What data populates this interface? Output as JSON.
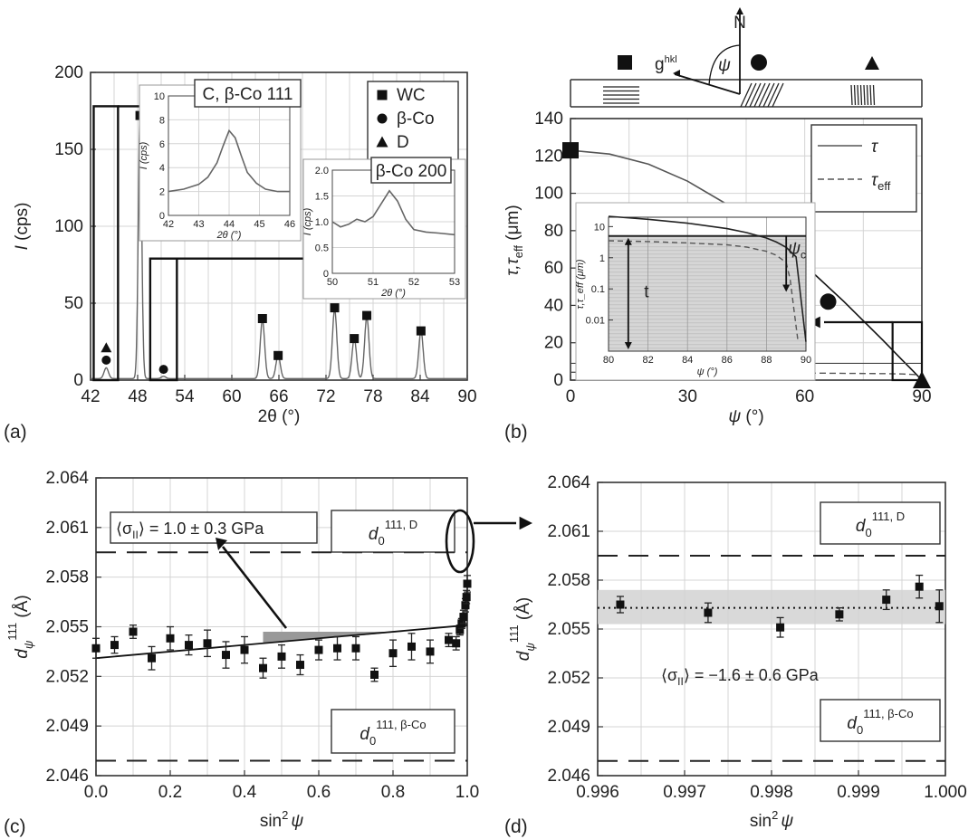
{
  "panel_labels": [
    "(a)",
    "(b)",
    "(c)",
    "(d)"
  ],
  "chart_data": [
    {
      "id": "a",
      "type": "line",
      "xlabel_sym": "2θ",
      "xlabel_unit": "(°)",
      "ylabel_sym": "I",
      "ylabel_unit": "(cps)",
      "xlim": [
        42,
        90
      ],
      "ylim": [
        0,
        200
      ],
      "xticks": [
        "42",
        "48",
        "54",
        "60",
        "66",
        "72",
        "78",
        "84",
        "90"
      ],
      "xtick_values": [
        42,
        48,
        54,
        60,
        66,
        72,
        78,
        84,
        90
      ],
      "yticks": [
        "0",
        "50",
        "100",
        "150",
        "200"
      ],
      "ytick_values": [
        0,
        50,
        100,
        150,
        200
      ],
      "grid": true,
      "legend_position": "top-right",
      "legend": [
        {
          "marker": "square",
          "label": "WC"
        },
        {
          "marker": "circle",
          "label": "β-Co"
        },
        {
          "marker": "triangle",
          "label": "D"
        }
      ],
      "peaks": [
        {
          "x": 44.0,
          "height": 7,
          "phase": "C, β-Co 111"
        },
        {
          "x": 48.3,
          "height": 170,
          "phase": "WC"
        },
        {
          "x": 51.3,
          "height": 1.5,
          "phase": "β-Co"
        },
        {
          "x": 63.9,
          "height": 38,
          "phase": "WC"
        },
        {
          "x": 65.9,
          "height": 15,
          "phase": "WC"
        },
        {
          "x": 73.1,
          "height": 45,
          "phase": "WC"
        },
        {
          "x": 75.6,
          "height": 26,
          "phase": "WC"
        },
        {
          "x": 77.2,
          "height": 40,
          "phase": "WC"
        },
        {
          "x": 84.1,
          "height": 31,
          "phase": "WC"
        }
      ],
      "markers": [
        {
          "x": 44.0,
          "y": 21,
          "marker": "triangle"
        },
        {
          "x": 44.0,
          "y": 13,
          "marker": "circle"
        },
        {
          "x": 48.3,
          "y": 172,
          "marker": "square"
        },
        {
          "x": 51.3,
          "y": 7,
          "marker": "circle"
        },
        {
          "x": 63.9,
          "y": 40,
          "marker": "square"
        },
        {
          "x": 65.9,
          "y": 16,
          "marker": "square"
        },
        {
          "x": 73.1,
          "y": 47,
          "marker": "square"
        },
        {
          "x": 75.6,
          "y": 27,
          "marker": "square"
        },
        {
          "x": 77.2,
          "y": 42,
          "marker": "square"
        },
        {
          "x": 84.1,
          "y": 32,
          "marker": "square"
        }
      ],
      "insets": [
        {
          "label": "C, β-Co 111",
          "xlabel": "2θ (°)",
          "ylabel": "I (cps)",
          "xlim": [
            42,
            46
          ],
          "ylim": [
            0,
            10
          ],
          "xticks": [
            "42",
            "43",
            "44",
            "45",
            "46"
          ],
          "xtick_values": [
            42,
            43,
            44,
            45,
            46
          ],
          "yticks": [
            "0",
            "2",
            "4",
            "6",
            "8",
            "10"
          ],
          "ytick_values": [
            0,
            2,
            4,
            6,
            8,
            10
          ],
          "x": [
            42.0,
            42.5,
            43.0,
            43.3,
            43.6,
            43.8,
            44.0,
            44.2,
            44.4,
            44.6,
            44.9,
            45.2,
            45.6,
            46.0
          ],
          "y": [
            2.0,
            2.2,
            2.6,
            3.2,
            4.4,
            5.8,
            7.1,
            6.5,
            5.0,
            3.6,
            2.7,
            2.2,
            2.0,
            2.0
          ]
        },
        {
          "label": "β-Co 200",
          "xlabel": "2θ (°)",
          "ylabel": "I (cps)",
          "xlim": [
            50,
            53
          ],
          "ylim": [
            0,
            2.0
          ],
          "xticks": [
            "50",
            "51",
            "52",
            "53"
          ],
          "xtick_values": [
            50,
            51,
            52,
            53
          ],
          "yticks": [
            "0",
            "0.5",
            "1.0",
            "1.5",
            "2.0"
          ],
          "ytick_values": [
            0,
            0.5,
            1.0,
            1.5,
            2.0
          ],
          "x": [
            50.0,
            50.2,
            50.4,
            50.6,
            50.8,
            51.0,
            51.2,
            51.4,
            51.6,
            51.8,
            52.0,
            52.3,
            52.6,
            53.0
          ],
          "y": [
            1.0,
            0.9,
            0.95,
            1.05,
            1.0,
            1.1,
            1.35,
            1.6,
            1.4,
            1.05,
            0.85,
            0.8,
            0.78,
            0.75
          ]
        }
      ]
    },
    {
      "id": "b",
      "type": "line",
      "xlabel_sym": "ψ",
      "xlabel_unit": "(°)",
      "ylabel_sym": "τ,τ",
      "ylabel_sub": "eff",
      "ylabel_unit": "(μm)",
      "xlim": [
        0,
        90
      ],
      "ylim": [
        0,
        140
      ],
      "xticks": [
        "0",
        "30",
        "60",
        "90"
      ],
      "xtick_values": [
        0,
        30,
        60,
        90
      ],
      "yticks": [
        "0",
        "20",
        "40",
        "60",
        "80",
        "100",
        "120",
        "140"
      ],
      "ytick_values": [
        0,
        20,
        40,
        60,
        80,
        100,
        120,
        140
      ],
      "grid": true,
      "legend_position": "top-right",
      "series": [
        {
          "name": "τ",
          "style": "solid",
          "x": [
            0,
            10,
            20,
            30,
            40,
            50,
            60,
            70,
            80,
            85,
            88,
            90
          ],
          "y": [
            123,
            121,
            115.6,
            106.5,
            94.2,
            79.1,
            61.5,
            42.1,
            21.4,
            10.7,
            4.3,
            0
          ]
        },
        {
          "name": "τ",
          "name_sub": "eff",
          "style": "dashed",
          "x": [
            0,
            30,
            60,
            80,
            85,
            88,
            89,
            90
          ],
          "y": [
            4.2,
            4.0,
            3.8,
            3.5,
            3.3,
            3.0,
            2.7,
            0
          ]
        }
      ],
      "markers": [
        {
          "x": 0,
          "y": 123,
          "marker": "square"
        },
        {
          "x": 66,
          "y": 42,
          "marker": "circle"
        },
        {
          "x": 90,
          "y": 0,
          "marker": "triangle"
        }
      ],
      "schematic": {
        "normal_label": "N",
        "g_label": "g",
        "g_sup": "hkl",
        "angle_label": "ψ"
      },
      "inset": {
        "xlabel": "ψ (°)",
        "ylabel": "τ,τ_eff (μm)",
        "xlim": [
          80,
          90
        ],
        "ylim_log": [
          0.001,
          20
        ],
        "xticks": [
          "80",
          "82",
          "84",
          "86",
          "88",
          "90"
        ],
        "xtick_values": [
          80,
          82,
          84,
          86,
          88,
          90
        ],
        "yticks": [
          "10",
          "1",
          "0.1",
          "0.01"
        ],
        "ytick_values": [
          10,
          1,
          0.1,
          0.01
        ],
        "thickness_label": "t",
        "critical_label": "ψ",
        "critical_sub": "c",
        "critical_angle": 89.0,
        "thickness_um": 5,
        "tau_x": [
          80,
          82,
          84,
          86,
          87,
          88,
          88.5,
          89,
          89.5,
          90
        ],
        "tau_y": [
          21.4,
          17.2,
          12.9,
          8.6,
          6.4,
          4.3,
          3.2,
          2.15,
          1.07,
          0.002
        ],
        "tau_eff_x": [
          80,
          82,
          84,
          86,
          87,
          88,
          88.5,
          89,
          89.2,
          89.4,
          89.6
        ],
        "tau_eff_y": [
          3.5,
          3.3,
          3.0,
          2.6,
          2.2,
          1.6,
          1.2,
          0.7,
          0.2,
          0.02,
          0.002
        ]
      }
    },
    {
      "id": "c",
      "type": "scatter",
      "xlabel_sym": "sin",
      "xlabel_sup": "2",
      "xlabel_sym2": "ψ",
      "ylabel_sym": "d",
      "ylabel_sub": "ψ",
      "ylabel_sup": "111",
      "ylabel_unit": "(Å)",
      "xlim": [
        0,
        1
      ],
      "ylim": [
        2.046,
        2.064
      ],
      "xticks": [
        "0.0",
        "0.2",
        "0.4",
        "0.6",
        "0.8",
        "1.0"
      ],
      "xtick_values": [
        0,
        0.2,
        0.4,
        0.6,
        0.8,
        1.0
      ],
      "yticks": [
        "2.046",
        "2.049",
        "2.052",
        "2.055",
        "2.058",
        "2.061",
        "2.064"
      ],
      "ytick_values": [
        2.046,
        2.049,
        2.052,
        2.055,
        2.058,
        2.061,
        2.064
      ],
      "grid": true,
      "stress_label": "⟨σ",
      "stress_sub": "II",
      "stress_value": "⟩ = 1.0 ± 0.3 GPa",
      "ref_D_text": "d",
      "ref_D_sub": "0",
      "ref_D_sup": "111, D",
      "ref_D_value": 2.0595,
      "ref_Co_text": "d",
      "ref_Co_sub": "0",
      "ref_Co_sup": "111, β-Co",
      "ref_Co_value": 2.0469,
      "fit": {
        "x": [
          0,
          1
        ],
        "y": [
          2.0531,
          2.0551
        ]
      },
      "points": [
        {
          "x": 0.0,
          "y": 2.0537,
          "err": 0.0006
        },
        {
          "x": 0.05,
          "y": 2.0539,
          "err": 0.0005
        },
        {
          "x": 0.1,
          "y": 2.0547,
          "err": 0.0004
        },
        {
          "x": 0.15,
          "y": 2.0531,
          "err": 0.0007
        },
        {
          "x": 0.2,
          "y": 2.0543,
          "err": 0.0007
        },
        {
          "x": 0.25,
          "y": 2.0539,
          "err": 0.0006
        },
        {
          "x": 0.3,
          "y": 2.054,
          "err": 0.0008
        },
        {
          "x": 0.35,
          "y": 2.0533,
          "err": 0.0008
        },
        {
          "x": 0.4,
          "y": 2.0536,
          "err": 0.0008
        },
        {
          "x": 0.45,
          "y": 2.0525,
          "err": 0.0006
        },
        {
          "x": 0.5,
          "y": 2.0532,
          "err": 0.0007
        },
        {
          "x": 0.55,
          "y": 2.0527,
          "err": 0.0006
        },
        {
          "x": 0.6,
          "y": 2.0536,
          "err": 0.0006
        },
        {
          "x": 0.65,
          "y": 2.0537,
          "err": 0.0007
        },
        {
          "x": 0.7,
          "y": 2.0537,
          "err": 0.0007
        },
        {
          "x": 0.75,
          "y": 2.0521,
          "err": 0.0004
        },
        {
          "x": 0.8,
          "y": 2.0534,
          "err": 0.0008
        },
        {
          "x": 0.85,
          "y": 2.0538,
          "err": 0.0008
        },
        {
          "x": 0.9,
          "y": 2.0535,
          "err": 0.0007
        },
        {
          "x": 0.95,
          "y": 2.0542,
          "err": 0.0004
        },
        {
          "x": 0.97,
          "y": 2.054,
          "err": 0.0004
        },
        {
          "x": 0.98,
          "y": 2.0548,
          "err": 0.0003
        },
        {
          "x": 0.985,
          "y": 2.0552,
          "err": 0.0003
        },
        {
          "x": 0.99,
          "y": 2.0556,
          "err": 0.0004
        },
        {
          "x": 0.995,
          "y": 2.0563,
          "err": 0.0004
        },
        {
          "x": 0.998,
          "y": 2.0568,
          "err": 0.0004
        },
        {
          "x": 1.0,
          "y": 2.0576,
          "err": 0.0005
        }
      ]
    },
    {
      "id": "d",
      "type": "scatter",
      "xlabel_sym": "sin",
      "xlabel_sup": "2",
      "xlabel_sym2": "ψ",
      "ylabel_sym": "d",
      "ylabel_sub": "ψ",
      "ylabel_sup": "111",
      "ylabel_unit": "(Å)",
      "xlim": [
        0.996,
        1.0
      ],
      "ylim": [
        2.046,
        2.064
      ],
      "xticks": [
        "0.996",
        "0.997",
        "0.998",
        "0.999",
        "1.000"
      ],
      "xtick_values": [
        0.996,
        0.997,
        0.998,
        0.999,
        1.0
      ],
      "yticks": [
        "2.046",
        "2.049",
        "2.052",
        "2.055",
        "2.058",
        "2.061",
        "2.064"
      ],
      "ytick_values": [
        2.046,
        2.049,
        2.052,
        2.055,
        2.058,
        2.061,
        2.064
      ],
      "grid": true,
      "stress_label": "⟨σ",
      "stress_sub": "II",
      "stress_value": "⟩ = −1.6 ± 0.6 GPa",
      "ref_D_text": "d",
      "ref_D_sub": "0",
      "ref_D_sup": "111, D",
      "ref_D_value": 2.0595,
      "ref_Co_text": "d",
      "ref_Co_sub": "0",
      "ref_Co_sup": "111, β-Co",
      "ref_Co_value": 2.0469,
      "mean": 2.0563,
      "band": [
        2.0553,
        2.0574
      ],
      "points": [
        {
          "x": 0.99626,
          "y": 2.0565,
          "err": 0.0005
        },
        {
          "x": 0.99727,
          "y": 2.056,
          "err": 0.0006
        },
        {
          "x": 0.9981,
          "y": 2.0551,
          "err": 0.0006
        },
        {
          "x": 0.99878,
          "y": 2.0559,
          "err": 0.0004
        },
        {
          "x": 0.99932,
          "y": 2.0568,
          "err": 0.0006
        },
        {
          "x": 0.9997,
          "y": 2.0576,
          "err": 0.0007
        },
        {
          "x": 0.99993,
          "y": 2.0564,
          "err": 0.001
        }
      ]
    }
  ]
}
